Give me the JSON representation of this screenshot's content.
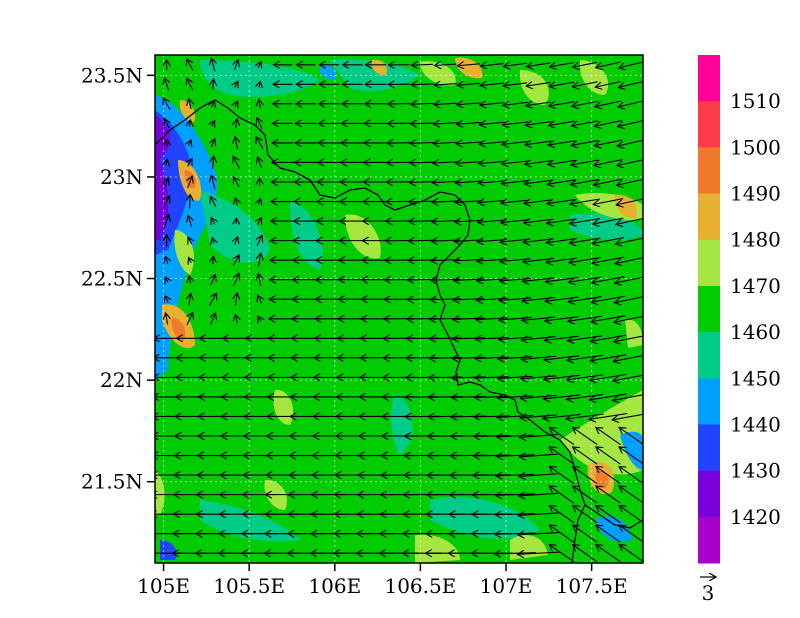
{
  "map": {
    "lat_axis": {
      "ticks": [
        {
          "value": 23.5,
          "label": "23.5N"
        },
        {
          "value": 23.0,
          "label": "23N"
        },
        {
          "value": 22.5,
          "label": "22.5N"
        },
        {
          "value": 22.0,
          "label": "22N"
        },
        {
          "value": 21.5,
          "label": "21.5N"
        }
      ],
      "range": [
        21.1,
        23.6
      ]
    },
    "lon_axis": {
      "ticks": [
        {
          "value": 105.0,
          "label": "105E"
        },
        {
          "value": 105.5,
          "label": "105.5E"
        },
        {
          "value": 106.0,
          "label": "106E"
        },
        {
          "value": 106.5,
          "label": "106.5E"
        },
        {
          "value": 107.0,
          "label": "107E"
        },
        {
          "value": 107.5,
          "label": "107.5E"
        }
      ],
      "range": [
        104.95,
        107.8
      ]
    },
    "gridlines": "dotted",
    "field_base_color": "#00cc00",
    "vector_reference": {
      "label": "3"
    }
  },
  "colorbar": {
    "levels": [
      {
        "label": "",
        "color": "#ff0099"
      },
      {
        "label": "1510",
        "color": "#ff3a4a"
      },
      {
        "label": "1500",
        "color": "#ef7a2a"
      },
      {
        "label": "1490",
        "color": "#e8b030"
      },
      {
        "label": "1480",
        "color": "#a6e640"
      },
      {
        "label": "1470",
        "color": "#00cc00"
      },
      {
        "label": "1460",
        "color": "#00cc88"
      },
      {
        "label": "1450",
        "color": "#00a0ff"
      },
      {
        "label": "1440",
        "color": "#2244ff"
      },
      {
        "label": "1430",
        "color": "#7700dd"
      },
      {
        "label": "1420",
        "color": "#aa00cc"
      }
    ]
  }
}
